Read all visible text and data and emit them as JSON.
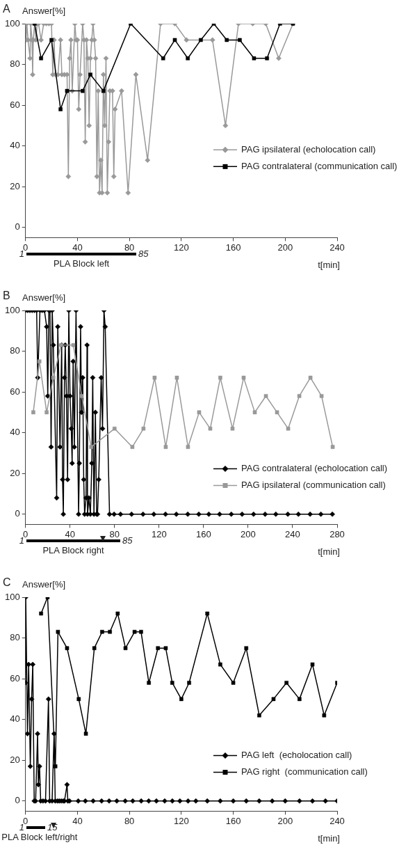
{
  "chart_data": [
    {
      "type": "line",
      "title": "A",
      "ylabel": "Answer[%]",
      "xlabel": "t[min]",
      "xlim": [
        0,
        240
      ],
      "xticks": [
        0,
        40,
        80,
        120,
        160,
        200,
        240
      ],
      "ylim": [
        -5,
        100
      ],
      "yticks": [
        0,
        20,
        40,
        60,
        80,
        100
      ],
      "legend": "right",
      "series": [
        {
          "name": "PAG ipsilateral (echolocation call)",
          "color": "#999999",
          "marker": "diamond",
          "x": [
            0,
            0.5,
            1,
            2,
            3.5,
            4,
            5,
            5.5,
            6,
            7,
            8,
            9,
            10,
            12,
            14,
            16,
            18,
            20,
            21,
            22,
            23,
            25,
            27,
            28,
            30,
            32,
            33,
            34,
            35,
            36,
            38,
            39,
            40,
            41,
            42,
            44,
            45,
            46,
            47,
            48,
            49,
            50,
            51,
            52,
            53,
            54,
            55,
            56,
            57,
            58,
            59,
            60,
            61,
            62,
            63,
            64,
            65,
            67,
            68,
            69,
            74,
            79,
            85,
            94,
            104,
            115,
            124,
            144,
            154,
            164,
            175,
            185,
            195,
            206
          ],
          "values": [
            100,
            92,
            100,
            92,
            83,
            100,
            92,
            75,
            92,
            100,
            92,
            100,
            100,
            92,
            100,
            100,
            100,
            100,
            75,
            92,
            75,
            75,
            92,
            75,
            75,
            75,
            25,
            83,
            92,
            67,
            100,
            92,
            92,
            58,
            75,
            100,
            92,
            42,
            92,
            83,
            50,
            83,
            92,
            100,
            92,
            83,
            25,
            67,
            17,
            33,
            17,
            75,
            50,
            83,
            17,
            42,
            67,
            67,
            25,
            58,
            67,
            17,
            75,
            33,
            100,
            100,
            92,
            92,
            50,
            100,
            100,
            100,
            83,
            100
          ]
        },
        {
          "name": "PAG contralateral (communication call)",
          "color": "#000000",
          "marker": "square",
          "x": [
            7,
            12,
            20,
            27,
            32,
            44,
            50,
            60,
            81,
            106,
            115,
            125,
            135,
            145,
            155,
            165,
            176,
            186,
            196,
            206
          ],
          "values": [
            100,
            83,
            92,
            58,
            67,
            67,
            75,
            67,
            100,
            83,
            92,
            83,
            92,
            100,
            92,
            92,
            83,
            83,
            100,
            100
          ]
        }
      ],
      "annotations": [
        "1",
        "85",
        "PLA Block left"
      ]
    },
    {
      "type": "line",
      "title": "B",
      "ylabel": "Answer[%]",
      "xlabel": "t[min]",
      "xlim": [
        0,
        280
      ],
      "xticks": [
        0,
        40,
        80,
        120,
        160,
        200,
        240,
        280
      ],
      "ylim": [
        -5,
        100
      ],
      "yticks": [
        0,
        20,
        40,
        60,
        80,
        100
      ],
      "legend": "bottom right",
      "series": [
        {
          "name": "PAG contralateral (echolocation call)",
          "color": "#000000",
          "marker": "diamond",
          "x": [
            0,
            2,
            4,
            6,
            8,
            10,
            11,
            13,
            15,
            17,
            19,
            20,
            21,
            22,
            23,
            24,
            25,
            28,
            29,
            31,
            32.5,
            33.3,
            34,
            35,
            35.7,
            36.8,
            37.8,
            38.9,
            40,
            41.1,
            41.9,
            42.8,
            43.9,
            45.4,
            47.7,
            48.4,
            49.5,
            50.3,
            51.4,
            52.3,
            53.1,
            54.4,
            55.3,
            55.7,
            57,
            58.3,
            59.6,
            60.4,
            61.5,
            62.8,
            63.9,
            64.7,
            65.8,
            68,
            69.2,
            70.5,
            71.6,
            75.5,
            79.6,
            85.4,
            95.3,
            105.6,
            115.3,
            125.8,
            135.5,
            145.8,
            155.7,
            164.7,
            174.4,
            184.9,
            194.6,
            204.9,
            215.3,
            224.9,
            235.7,
            245.2,
            255.7,
            265.4,
            275.7
          ],
          "values": [
            100,
            100,
            100,
            100,
            100,
            100,
            67,
            100,
            100,
            100,
            92,
            58,
            100,
            100,
            33,
            100,
            83,
            8,
            92,
            33,
            83,
            17,
            0,
            67,
            83,
            58,
            17,
            100,
            58,
            42,
            25,
            75,
            33,
            100,
            0,
            25,
            92,
            50,
            67,
            17,
            0,
            8,
            83,
            0,
            8,
            0,
            25,
            67,
            0,
            50,
            0,
            0,
            17,
            67,
            42,
            100,
            92,
            0,
            0,
            0,
            0,
            0,
            0,
            0,
            0,
            0,
            0,
            0,
            0,
            0,
            0,
            0,
            0,
            0,
            0,
            0,
            0,
            0,
            0
          ]
        },
        {
          "name": "PAG ipsilateral (communication call)",
          "color": "#999999",
          "marker": "square",
          "x": [
            7,
            12.5,
            19,
            25,
            32,
            43,
            50.5,
            59,
            80,
            96,
            106,
            116,
            126,
            136,
            146,
            156,
            166,
            175,
            186,
            196,
            206,
            216,
            226,
            236,
            246,
            256,
            266,
            276
          ],
          "values": [
            50,
            75,
            50,
            67,
            83,
            83,
            58,
            33,
            42,
            33,
            42,
            67,
            33,
            67,
            33,
            50,
            42,
            67,
            42,
            67,
            50,
            58,
            50,
            42,
            58,
            67,
            58,
            33
          ]
        }
      ],
      "annotations": [
        "1",
        "85",
        "PLA Block right"
      ]
    },
    {
      "type": "line",
      "title": "C",
      "ylabel": "Answer[%]",
      "xlabel": "t[min]",
      "xlim": [
        0,
        240
      ],
      "xticks": [
        0,
        40,
        80,
        120,
        160,
        200,
        240
      ],
      "ylim": [
        -5,
        100
      ],
      "yticks": [
        0,
        20,
        40,
        60,
        80,
        100
      ],
      "legend": "bottom right",
      "series": [
        {
          "name": "PAG left  (echolocation call)",
          "color": "#000000",
          "marker": "diamond",
          "x": [
            0,
            0.2,
            1.5,
            2.4,
            3.7,
            4.7,
            5.6,
            6.7,
            7.8,
            9.3,
            9.9,
            10.8,
            11.7,
            13.5,
            15.4,
            17.7,
            18.6,
            20.5,
            22,
            22.9,
            24.6,
            26,
            27.5,
            29,
            30,
            32,
            32.6,
            33.9,
            40.6,
            46.1,
            52.1,
            58.6,
            64.4,
            70.3,
            76.8,
            82.6,
            89.1,
            94.9,
            100.8,
            107.2,
            113.1,
            118.9,
            125.2,
            131.2,
            140,
            150,
            160,
            170,
            180,
            190,
            200,
            211,
            221,
            231,
            240
          ],
          "values": [
            58,
            100,
            33,
            67,
            17,
            50,
            67,
            0,
            0,
            33,
            8,
            17,
            0,
            0,
            0,
            50,
            0,
            0,
            33,
            0,
            0,
            0,
            0,
            0,
            0,
            8,
            0,
            0,
            0,
            0,
            0,
            0,
            0,
            0,
            0,
            0,
            0,
            0,
            0,
            0,
            0,
            0,
            0,
            0,
            0,
            0,
            0,
            0,
            0,
            0,
            0,
            0,
            0,
            0,
            0
          ]
        },
        {
          "name": "PAG right  (communication call)",
          "color": "#000000",
          "marker": "square",
          "x": [
            12,
            17,
            23,
            25,
            32,
            41,
            46.5,
            53,
            59,
            65,
            71,
            77,
            84,
            89,
            95,
            102,
            108,
            113,
            120,
            126,
            140,
            150,
            160,
            170,
            180,
            191,
            201,
            211,
            221,
            230,
            240
          ],
          "values": [
            92,
            100,
            17,
            83,
            75,
            50,
            33,
            75,
            83,
            83,
            92,
            75,
            83,
            83,
            58,
            75,
            75,
            58,
            50,
            58,
            92,
            67,
            58,
            75,
            42,
            50,
            58,
            50,
            67,
            42,
            58
          ]
        }
      ],
      "annotations": [
        "1",
        "15",
        "PLA Block left/right"
      ]
    }
  ]
}
